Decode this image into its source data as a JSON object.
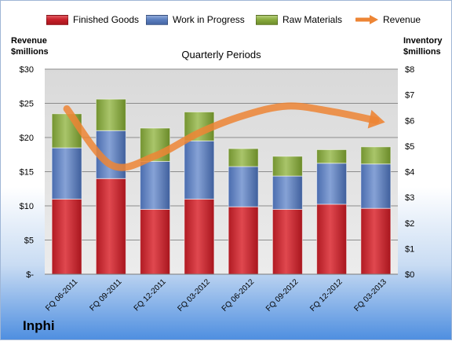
{
  "chart_data": {
    "type": "bar",
    "stacked": true,
    "subtitle": "Quarterly Periods",
    "y_left_label": [
      "Revenue",
      "$millions"
    ],
    "y_right_label": [
      "Inventory",
      "$millions"
    ],
    "categories": [
      "FQ 06-2011",
      "FQ 09-2011",
      "FQ 12-2011",
      "FQ 03-2012",
      "FQ 06-2012",
      "FQ 09-2012",
      "FQ 12-2012",
      "FQ 03-2013"
    ],
    "series": [
      {
        "name": "Finished Goods",
        "axis": "right",
        "color": "#c8202a",
        "values": [
          2.93,
          3.73,
          2.53,
          2.93,
          2.63,
          2.53,
          2.73,
          2.57
        ]
      },
      {
        "name": "Work in Progress",
        "axis": "right",
        "color": "#5b7fc0",
        "values": [
          2.0,
          1.87,
          1.87,
          2.27,
          1.57,
          1.3,
          1.6,
          1.73
        ]
      },
      {
        "name": "Raw Materials",
        "axis": "right",
        "color": "#8aac3e",
        "values": [
          1.33,
          1.23,
          1.3,
          1.13,
          0.7,
          0.77,
          0.53,
          0.67
        ]
      }
    ],
    "line": {
      "name": "Revenue",
      "axis": "left",
      "color": "#ed8535",
      "values": [
        24.2,
        16.0,
        17.3,
        20.7,
        23.2,
        24.6,
        23.8,
        22.5
      ]
    },
    "y_left": {
      "min": 0,
      "max": 30,
      "step": 5,
      "ticks": [
        "$-",
        "$5",
        "$10",
        "$15",
        "$20",
        "$25",
        "$30"
      ]
    },
    "y_right": {
      "min": 0,
      "max": 8,
      "step": 1,
      "ticks": [
        "$0",
        "$1",
        "$2",
        "$3",
        "$4",
        "$5",
        "$6",
        "$7",
        "$8"
      ]
    },
    "grid": true,
    "legend_position": "top",
    "company": "Inphi"
  }
}
